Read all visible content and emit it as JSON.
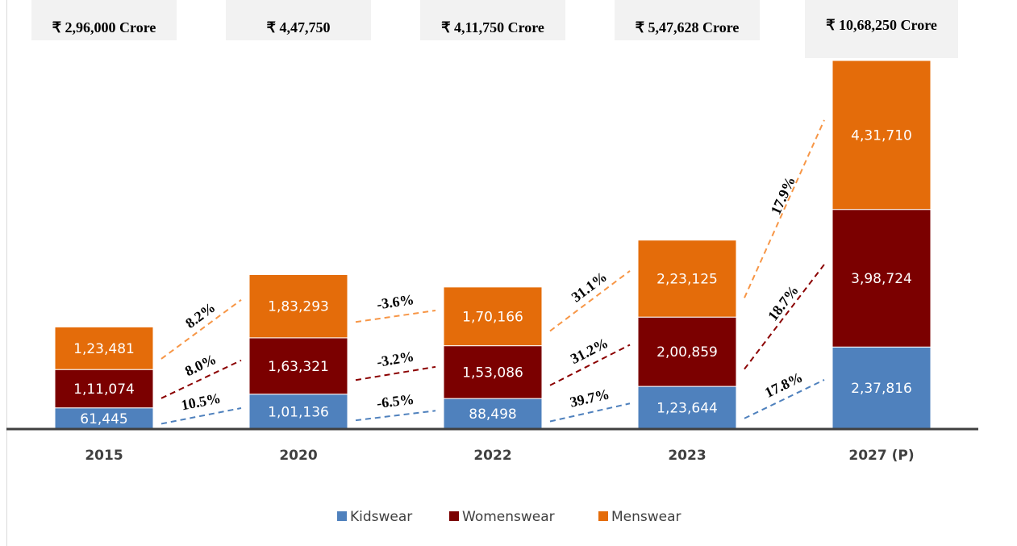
{
  "chart_data": {
    "type": "bar",
    "stacked": true,
    "categories": [
      "2015",
      "2020",
      "2022",
      "2023",
      "2027 (P)"
    ],
    "total_labels": [
      "₹ 2,96,000 Crore",
      "₹ 4,47,750",
      "₹ 4,11,750 Crore",
      "₹ 5,47,628 Crore",
      "₹ 10,68,250 Crore"
    ],
    "series": [
      {
        "name": "Kidswear",
        "color": "#4f81bd",
        "line_color": "#4f81bd",
        "values": [
          61445,
          101136,
          88498,
          123644,
          237816
        ],
        "value_labels": [
          "61,445",
          "1,01,136",
          "88,498",
          "1,23,644",
          "2,37,816"
        ],
        "growth_labels": [
          "10.5%",
          "-6.5%",
          "39.7%",
          "17.8%"
        ]
      },
      {
        "name": "Womenswear",
        "color": "#7b0000",
        "line_color": "#8b0000",
        "values": [
          111074,
          163321,
          153086,
          200859,
          398724
        ],
        "value_labels": [
          "1,11,074",
          "1,63,321",
          "1,53,086",
          "2,00,859",
          "3,98,724"
        ],
        "growth_labels": [
          "8.0%",
          "-3.2%",
          "31.2%",
          "18.7%"
        ]
      },
      {
        "name": "Menswear",
        "color": "#e46c0a",
        "line_color": "#f79646",
        "values": [
          123481,
          183293,
          170166,
          223125,
          431710
        ],
        "value_labels": [
          "1,23,481",
          "1,83,293",
          "1,70,166",
          "2,23,125",
          "4,31,710"
        ],
        "growth_labels": [
          "8.2%",
          "-3.6%",
          "31.1%",
          "17.9%"
        ]
      }
    ]
  }
}
